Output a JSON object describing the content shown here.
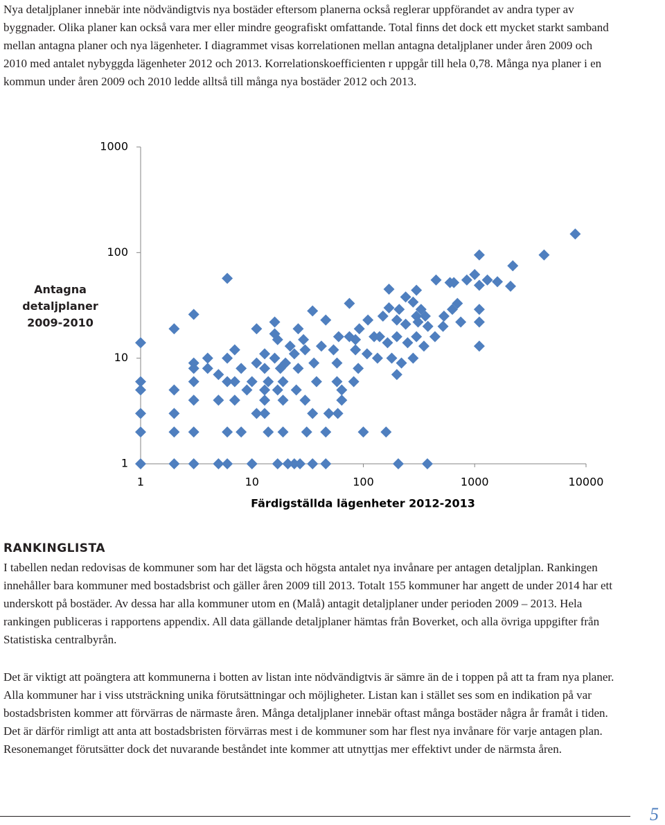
{
  "intro": "Nya detaljplaner innebär inte nödvändigtvis nya bostäder eftersom planerna också reglerar uppförandet av andra typer av byggnader. Olika planer kan också vara mer eller mindre geografiskt omfattande. Total finns det dock ett mycket starkt samband mellan antagna planer och nya lägenheter. I diagrammet visas korrelationen mellan antagna detaljplaner under åren 2009 och 2010 med antalet nybyggda lägenheter 2012 och 2013. Korrelationskoefficienten r uppgår till hela 0,78. Många nya planer i en kommun under åren 2009 och 2010 ledde alltså till många nya bostäder 2012 och 2013.",
  "chart_data": {
    "type": "scatter",
    "xlabel": "Färdigställda lägenheter 2012-2013",
    "ylabel": "Antagna detaljplaner 2009-2010",
    "color": "#4f7fbf",
    "log_x": true,
    "log_y": true,
    "xlim": [
      1,
      10000
    ],
    "ylim": [
      1,
      1000
    ],
    "xticks": [
      1,
      10,
      100,
      1000,
      10000
    ],
    "yticks": [
      1,
      10,
      100,
      1000
    ],
    "x": [
      8000,
      1100,
      4200,
      2200,
      6,
      1000,
      1300,
      1600,
      850,
      450,
      600,
      650,
      2100,
      170,
      300,
      1100,
      240,
      280,
      75,
      700,
      35,
      3,
      210,
      330,
      1100,
      170,
      300,
      360,
      530,
      630,
      1100,
      46,
      2,
      11,
      16,
      26,
      92,
      110,
      150,
      200,
      240,
      310,
      380,
      520,
      750,
      16,
      17,
      29,
      60,
      75,
      85,
      125,
      140,
      165,
      200,
      250,
      300,
      350,
      440,
      1,
      1100,
      7,
      13,
      22,
      24,
      30,
      42,
      54,
      85,
      108,
      134,
      180,
      220,
      280,
      3,
      4,
      6,
      11,
      16,
      20,
      36,
      58,
      90,
      3,
      4,
      8,
      13,
      18,
      26,
      82,
      200,
      3,
      5,
      7,
      10,
      14,
      19,
      38,
      58,
      1,
      6,
      9,
      13,
      17,
      25,
      64,
      1,
      2,
      3,
      5,
      7,
      13,
      19,
      30,
      64,
      1,
      2,
      11,
      13,
      35,
      49,
      59,
      1,
      2,
      3,
      6,
      8,
      14,
      19,
      31,
      46,
      100,
      160,
      1,
      2,
      3,
      5,
      6,
      10,
      17,
      21,
      24,
      27,
      35,
      46,
      206,
      376
    ],
    "values": [
      150,
      95,
      95,
      75,
      57,
      62,
      55,
      53,
      55,
      55,
      52,
      52,
      48,
      45,
      44,
      49,
      38,
      34,
      33,
      33,
      28,
      26,
      29,
      29,
      29,
      30,
      25,
      25,
      25,
      29,
      22,
      23,
      19,
      19,
      22,
      19,
      19,
      23,
      25,
      23,
      21,
      22,
      20,
      20,
      22,
      17,
      15,
      15,
      16,
      16,
      15,
      16,
      16,
      14,
      16,
      14,
      16,
      13,
      16,
      14,
      13,
      12,
      11,
      13,
      11,
      12,
      13,
      12,
      12,
      11,
      10,
      10,
      9,
      10,
      9,
      10,
      10,
      9,
      10,
      9,
      9,
      9,
      8,
      8,
      8,
      8,
      8,
      8,
      8,
      6,
      7,
      6,
      7,
      6,
      6,
      6,
      6,
      6,
      6,
      6,
      6,
      5,
      5,
      5,
      5,
      5,
      5,
      5,
      4,
      4,
      4,
      4,
      4,
      4,
      4,
      3,
      3,
      3,
      3,
      3,
      3,
      3,
      2,
      2,
      2,
      2,
      2,
      2,
      2,
      2,
      2,
      2,
      2,
      1,
      1,
      1,
      1,
      1,
      1,
      1,
      1,
      1,
      1,
      1,
      1,
      1,
      1
    ]
  },
  "section": {
    "heading": "RANKINGLISTA",
    "paragraphs": [
      "I tabellen nedan redovisas de kommuner som har det lägsta och högsta antalet nya invånare per antagen detaljplan. Rankingen innehåller bara kommuner med bostadsbrist och gäller åren 2009 till 2013. Totalt 155 kommuner har angett de under 2014 har ett underskott på bostäder. Av dessa har alla kommuner utom en (Malå) antagit detaljplaner under perioden 2009 – 2013. Hela rankingen publiceras i rapportens appendix. All data gällande detaljplaner hämtas från Boverket, och alla övriga uppgifter från Statistiska centralbyrån.",
      "Det är viktigt att poängtera att kommunerna i botten av listan inte nödvändigtvis är sämre än de i toppen på att ta fram nya planer. Alla kommuner har i viss utsträckning unika förutsättningar och möjligheter. Listan kan i stället ses som en indikation på var bostadsbristen kommer att förvärras de närmaste åren.  Många detaljplaner innebär oftast många bostäder några år framåt i tiden. Det är därför rimligt att anta att bostadsbristen förvärras mest i de kommuner som har flest nya invånare för varje antagen plan. Resonemanget förutsätter dock det nuvarande beståndet inte kommer att utnyttjas mer effektivt under de närmsta åren."
    ]
  },
  "page_number": "5"
}
